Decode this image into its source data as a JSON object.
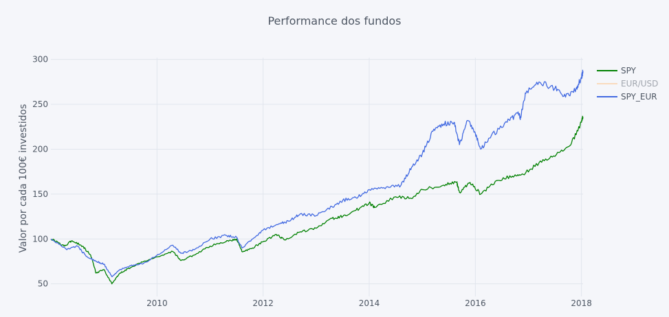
{
  "chart_data": {
    "type": "line",
    "title": "Performance dos fundos",
    "xlabel": "",
    "ylabel": "Valor por cada 100€ investidos",
    "xlim": [
      2008.0,
      2018.03
    ],
    "ylim": [
      36,
      302
    ],
    "x_ticks": [
      "2010",
      "2012",
      "2014",
      "2016",
      "2018"
    ],
    "y_ticks": [
      "50",
      "100",
      "150",
      "200",
      "250",
      "300"
    ],
    "grid": true,
    "legend_position": "right",
    "series": [
      {
        "name": "SPY",
        "color": "#008000",
        "visible": true,
        "x": [
          2008.0,
          2008.25,
          2008.4,
          2008.6,
          2008.75,
          2008.85,
          2009.0,
          2009.15,
          2009.3,
          2009.5,
          2009.75,
          2010.0,
          2010.3,
          2010.45,
          2010.7,
          2011.0,
          2011.3,
          2011.5,
          2011.6,
          2011.8,
          2012.0,
          2012.25,
          2012.4,
          2012.7,
          2013.0,
          2013.3,
          2013.5,
          2013.75,
          2014.0,
          2014.1,
          2014.5,
          2014.8,
          2015.0,
          2015.4,
          2015.65,
          2015.7,
          2015.9,
          2016.1,
          2016.4,
          2016.7,
          2016.9,
          2017.2,
          2017.5,
          2017.8,
          2018.0,
          2018.03
        ],
        "y": [
          100,
          92,
          98,
          92,
          82,
          62,
          66,
          50,
          62,
          68,
          75,
          80,
          86,
          76,
          82,
          92,
          97,
          100,
          86,
          90,
          97,
          105,
          99,
          108,
          112,
          123,
          125,
          132,
          140,
          135,
          147,
          145,
          155,
          160,
          163,
          152,
          163,
          150,
          165,
          170,
          172,
          185,
          192,
          205,
          230,
          236
        ]
      },
      {
        "name": "EUR/USD",
        "color": "#ffbf80",
        "visible": false,
        "x": [],
        "y": []
      },
      {
        "name": "SPY_EUR",
        "color": "#4169e1",
        "visible": true,
        "x": [
          2008.0,
          2008.3,
          2008.5,
          2008.65,
          2008.85,
          2009.0,
          2009.15,
          2009.3,
          2009.5,
          2009.75,
          2010.0,
          2010.3,
          2010.45,
          2010.7,
          2011.0,
          2011.3,
          2011.5,
          2011.6,
          2011.8,
          2012.0,
          2012.3,
          2012.5,
          2012.7,
          2013.0,
          2013.3,
          2013.5,
          2013.75,
          2014.0,
          2014.3,
          2014.6,
          2014.8,
          2015.0,
          2015.2,
          2015.4,
          2015.6,
          2015.7,
          2015.85,
          2016.0,
          2016.1,
          2016.3,
          2016.6,
          2016.8,
          2016.85,
          2016.95,
          2017.2,
          2017.5,
          2017.7,
          2017.9,
          2018.0,
          2018.03
        ],
        "y": [
          100,
          88,
          92,
          82,
          75,
          72,
          58,
          66,
          70,
          73,
          82,
          93,
          84,
          88,
          100,
          104,
          102,
          90,
          100,
          110,
          117,
          120,
          128,
          126,
          136,
          143,
          146,
          155,
          156,
          160,
          180,
          195,
          220,
          228,
          230,
          205,
          232,
          218,
          200,
          215,
          230,
          240,
          235,
          262,
          275,
          268,
          258,
          268,
          280,
          287
        ]
      }
    ]
  }
}
